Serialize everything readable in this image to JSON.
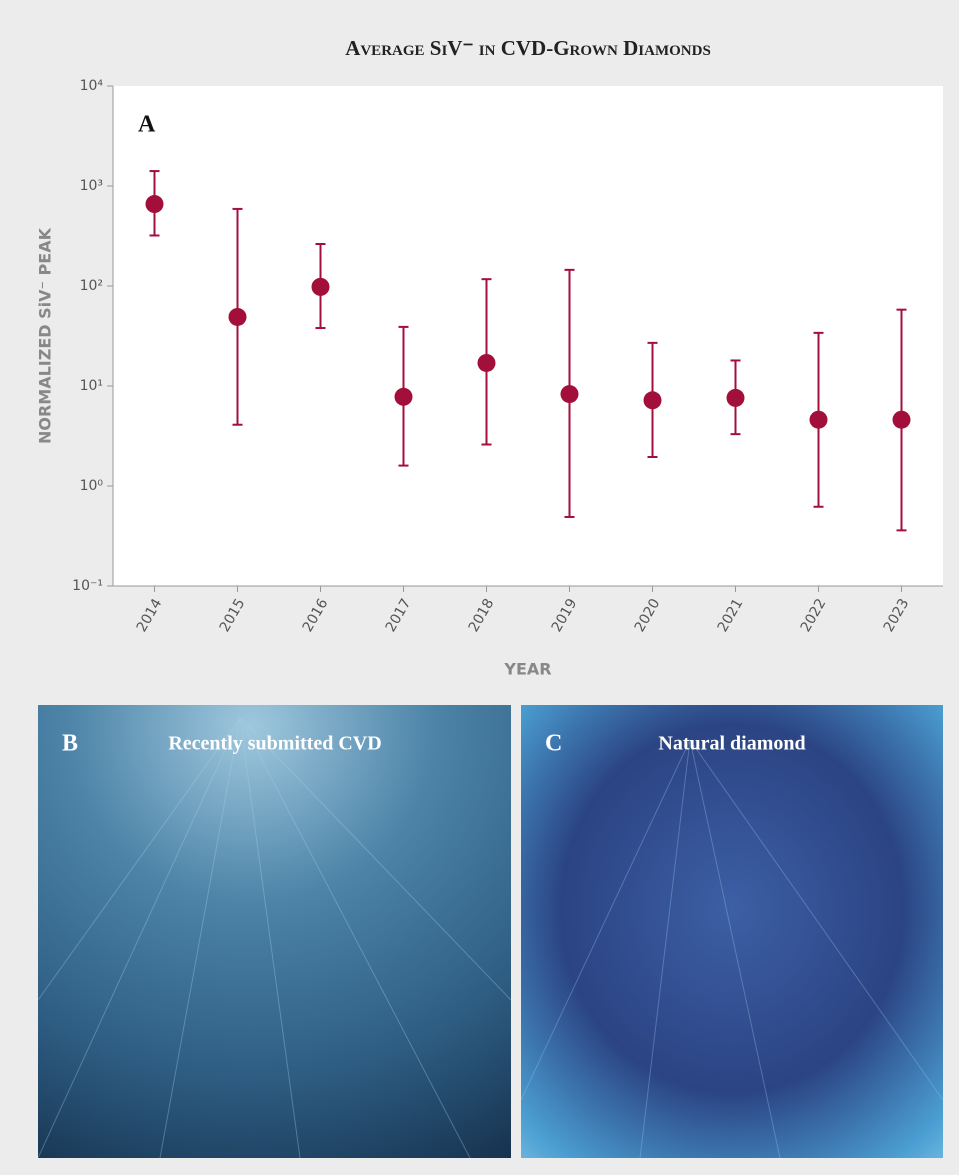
{
  "chart_data": {
    "type": "errorbar",
    "title": "Average SiV⁻ in CVD-Grown Diamonds",
    "panel_label": "A",
    "x_label": "YEAR",
    "y_label": "NORMALIZED SiV⁻ PEAK",
    "categories": [
      "2014",
      "2015",
      "2016",
      "2017",
      "2018",
      "2019",
      "2020",
      "2021",
      "2022",
      "2023"
    ],
    "values": [
      660,
      49,
      98,
      7.8,
      17,
      8.3,
      7.2,
      7.6,
      4.6,
      4.6
    ],
    "upper": [
      1410,
      590,
      263,
      39,
      117,
      145,
      27,
      18,
      34,
      58
    ],
    "lower": [
      320,
      4.1,
      38,
      1.6,
      2.6,
      0.49,
      1.95,
      3.3,
      0.62,
      0.36
    ],
    "color": "#a30f3b",
    "log_scale": true,
    "ylim": [
      0.1,
      10000
    ],
    "yticks": [
      {
        "value": 0.1,
        "label": "10⁻¹"
      },
      {
        "value": 1,
        "label": "10⁰"
      },
      {
        "value": 10,
        "label": "10¹"
      },
      {
        "value": 100,
        "label": "10²"
      },
      {
        "value": 1000,
        "label": "10³"
      },
      {
        "value": 10000,
        "label": "10⁴"
      }
    ]
  },
  "photos": [
    {
      "letter": "B",
      "caption": "Recently submitted CVD"
    },
    {
      "letter": "C",
      "caption": "Natural diamond"
    }
  ]
}
